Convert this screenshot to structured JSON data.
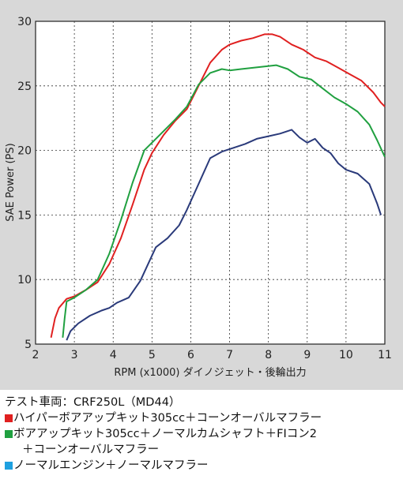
{
  "chart_data": {
    "type": "line",
    "title": "",
    "xlabel": "RPM (x1000) ダイノジェット・後輪出力",
    "ylabel": "SAE Power (PS)",
    "xlim": [
      2,
      11
    ],
    "ylim": [
      5,
      30
    ],
    "x_ticks": [
      "2",
      "3",
      "4",
      "5",
      "6",
      "7",
      "8",
      "9",
      "10",
      "11"
    ],
    "y_ticks": [
      "5",
      "10",
      "15",
      "20",
      "25",
      "30"
    ],
    "grid": true,
    "series": [
      {
        "color": "#e02020",
        "points": [
          [
            2.4,
            5.5
          ],
          [
            2.5,
            7.0
          ],
          [
            2.6,
            7.8
          ],
          [
            2.8,
            8.5
          ],
          [
            3.0,
            8.7
          ],
          [
            3.3,
            9.2
          ],
          [
            3.6,
            9.8
          ],
          [
            3.9,
            11.2
          ],
          [
            4.2,
            13.2
          ],
          [
            4.5,
            15.8
          ],
          [
            4.8,
            18.5
          ],
          [
            5.0,
            19.8
          ],
          [
            5.3,
            21.2
          ],
          [
            5.6,
            22.3
          ],
          [
            5.9,
            23.2
          ],
          [
            6.2,
            25.0
          ],
          [
            6.5,
            26.8
          ],
          [
            6.8,
            27.8
          ],
          [
            7.0,
            28.2
          ],
          [
            7.3,
            28.5
          ],
          [
            7.6,
            28.7
          ],
          [
            7.9,
            29.0
          ],
          [
            8.1,
            29.0
          ],
          [
            8.3,
            28.8
          ],
          [
            8.6,
            28.2
          ],
          [
            8.9,
            27.8
          ],
          [
            9.2,
            27.2
          ],
          [
            9.5,
            26.9
          ],
          [
            9.8,
            26.4
          ],
          [
            10.1,
            25.9
          ],
          [
            10.4,
            25.4
          ],
          [
            10.7,
            24.5
          ],
          [
            10.9,
            23.7
          ],
          [
            11.0,
            23.4
          ]
        ]
      },
      {
        "color": "#20a040",
        "points": [
          [
            2.7,
            5.5
          ],
          [
            2.75,
            7.0
          ],
          [
            2.8,
            8.3
          ],
          [
            3.0,
            8.6
          ],
          [
            3.3,
            9.2
          ],
          [
            3.6,
            10.0
          ],
          [
            3.9,
            12.0
          ],
          [
            4.2,
            14.6
          ],
          [
            4.5,
            17.5
          ],
          [
            4.8,
            20.0
          ],
          [
            5.0,
            20.6
          ],
          [
            5.3,
            21.5
          ],
          [
            5.6,
            22.4
          ],
          [
            5.9,
            23.4
          ],
          [
            6.2,
            25.1
          ],
          [
            6.5,
            26.0
          ],
          [
            6.8,
            26.3
          ],
          [
            7.0,
            26.2
          ],
          [
            7.3,
            26.3
          ],
          [
            7.6,
            26.4
          ],
          [
            7.9,
            26.5
          ],
          [
            8.2,
            26.6
          ],
          [
            8.5,
            26.3
          ],
          [
            8.8,
            25.7
          ],
          [
            9.1,
            25.5
          ],
          [
            9.4,
            24.8
          ],
          [
            9.7,
            24.1
          ],
          [
            10.0,
            23.6
          ],
          [
            10.3,
            23.0
          ],
          [
            10.6,
            22.0
          ],
          [
            10.8,
            20.8
          ],
          [
            11.0,
            19.5
          ]
        ]
      },
      {
        "color": "#2a3a7a",
        "points": [
          [
            2.8,
            5.3
          ],
          [
            2.9,
            6.0
          ],
          [
            3.1,
            6.6
          ],
          [
            3.4,
            7.2
          ],
          [
            3.7,
            7.6
          ],
          [
            3.9,
            7.8
          ],
          [
            4.1,
            8.2
          ],
          [
            4.4,
            8.6
          ],
          [
            4.7,
            9.9
          ],
          [
            4.9,
            11.2
          ],
          [
            5.1,
            12.5
          ],
          [
            5.4,
            13.2
          ],
          [
            5.7,
            14.2
          ],
          [
            5.9,
            15.4
          ],
          [
            6.2,
            17.4
          ],
          [
            6.5,
            19.4
          ],
          [
            6.8,
            19.9
          ],
          [
            7.1,
            20.2
          ],
          [
            7.4,
            20.5
          ],
          [
            7.7,
            20.9
          ],
          [
            8.0,
            21.1
          ],
          [
            8.3,
            21.3
          ],
          [
            8.6,
            21.6
          ],
          [
            8.8,
            21.0
          ],
          [
            9.0,
            20.6
          ],
          [
            9.2,
            20.9
          ],
          [
            9.4,
            20.2
          ],
          [
            9.6,
            19.8
          ],
          [
            9.8,
            19.0
          ],
          [
            10.0,
            18.5
          ],
          [
            10.3,
            18.2
          ],
          [
            10.6,
            17.4
          ],
          [
            10.8,
            15.9
          ],
          [
            10.9,
            15.0
          ]
        ]
      }
    ]
  },
  "caption": {
    "header": "テスト車両：CRF250L（MD44）",
    "legend": [
      {
        "color": "#e02020",
        "lines": [
          "ハイパーボアアップキット305cc＋コーンオーバルマフラー"
        ]
      },
      {
        "color": "#20a040",
        "lines": [
          "ボアアップキット305cc＋ノーマルカムシャフト＋FIコン2",
          "＋コーンオーバルマフラー"
        ]
      },
      {
        "color": "#1ea0e0",
        "lines": [
          "ノーマルエンジン＋ノーマルマフラー"
        ]
      }
    ]
  }
}
